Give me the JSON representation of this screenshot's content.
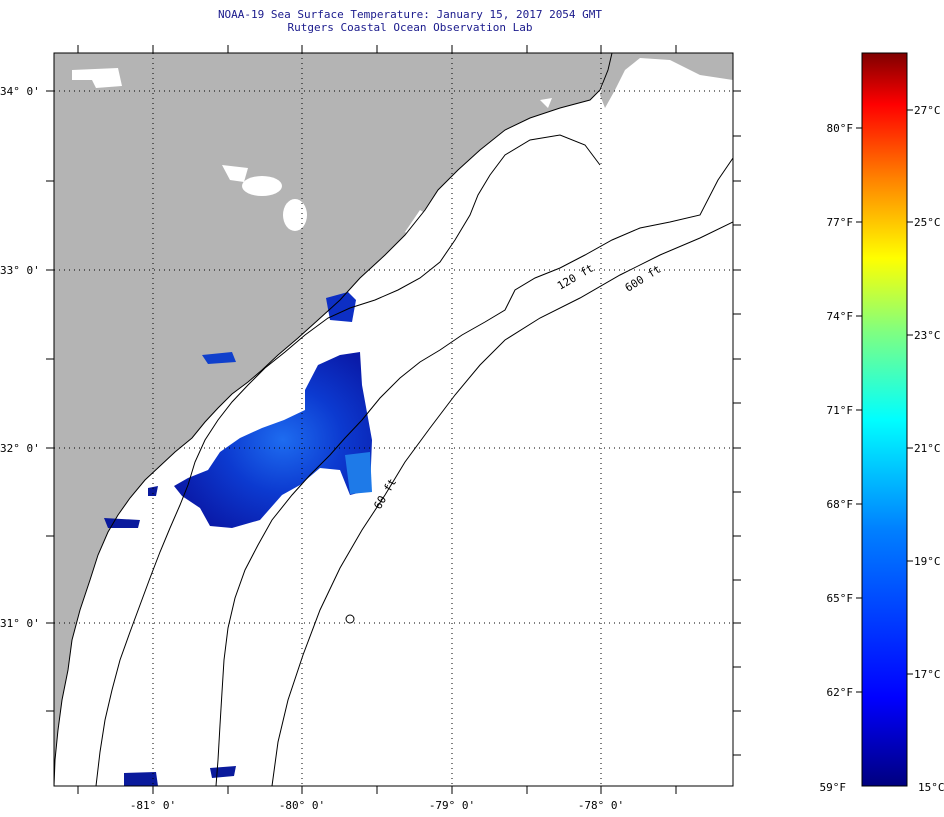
{
  "header": {
    "title": "NOAA-19 Sea Surface Temperature:  January 15, 2017 2054 GMT",
    "subtitle": "Rutgers Coastal Ocean Observation Lab"
  },
  "map": {
    "lon_labels": [
      "-81° 0'",
      "-80° 0'",
      "-79° 0'",
      "-78° 0'"
    ],
    "lat_labels": [
      "34° 0'",
      "33° 0'",
      "32° 0'",
      "31° 0'"
    ],
    "contour_labels": [
      "120 ft",
      "600 ft",
      "60 ft"
    ],
    "land_color": "#b4b4b4",
    "cloud_color": "#ffffff"
  },
  "colorbar": {
    "fahrenheit_labels": [
      "80°F",
      "77°F",
      "74°F",
      "71°F",
      "68°F",
      "65°F",
      "62°F",
      "59°F"
    ],
    "celsius_labels": [
      "27°C",
      "25°C",
      "23°C",
      "21°C",
      "19°C",
      "17°C",
      "15°C"
    ],
    "colors": [
      "#7f0000",
      "#ff0000",
      "#ff8000",
      "#ffff00",
      "#80ff80",
      "#00ffff",
      "#0080ff",
      "#0000ff",
      "#00007f"
    ]
  }
}
